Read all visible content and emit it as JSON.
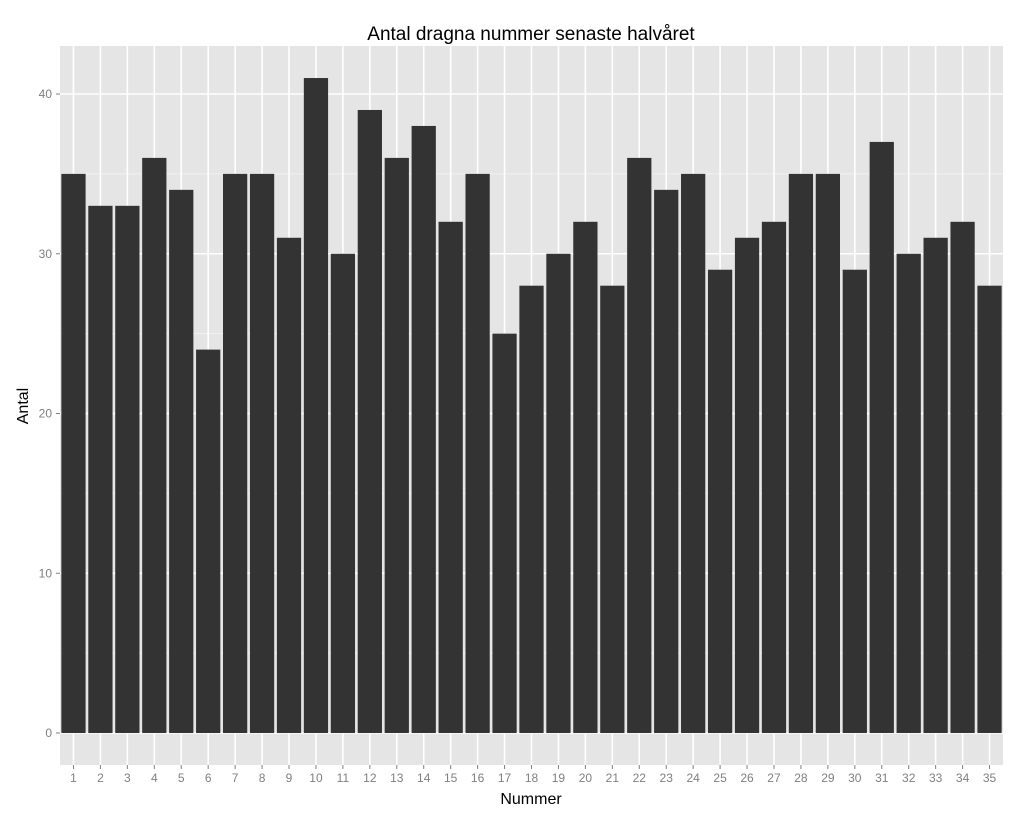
{
  "chart_data": {
    "type": "bar",
    "title": "Antal dragna nummer senaste halvåret",
    "xlabel": "Nummer",
    "ylabel": "Antal",
    "categories": [
      "1",
      "2",
      "3",
      "4",
      "5",
      "6",
      "7",
      "8",
      "9",
      "10",
      "11",
      "12",
      "13",
      "14",
      "15",
      "16",
      "17",
      "18",
      "19",
      "20",
      "21",
      "22",
      "23",
      "24",
      "25",
      "26",
      "27",
      "28",
      "29",
      "30",
      "31",
      "32",
      "33",
      "34",
      "35"
    ],
    "values": [
      35,
      33,
      33,
      36,
      34,
      24,
      35,
      35,
      31,
      41,
      30,
      39,
      36,
      38,
      32,
      35,
      25,
      28,
      30,
      32,
      28,
      36,
      34,
      35,
      29,
      31,
      32,
      35,
      35,
      29,
      37,
      30,
      31,
      32,
      28
    ],
    "ylim": [
      0,
      43
    ],
    "yticks": [
      0,
      10,
      20,
      30,
      40
    ],
    "grid": true,
    "colors": {
      "bar": "#333333",
      "panel_background": "#e5e5e5",
      "grid_major": "#ffffff",
      "grid_minor": "#f2f2f2",
      "tick_text": "#7f7f7f"
    }
  }
}
